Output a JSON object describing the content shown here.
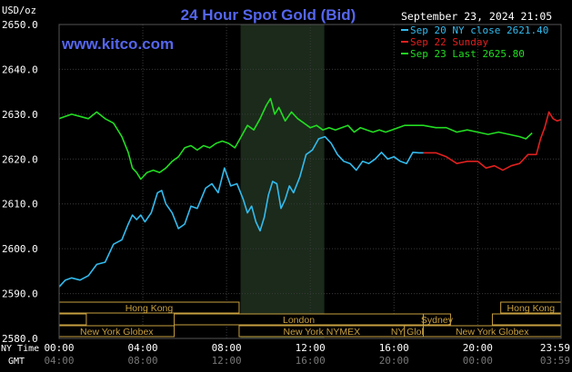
{
  "chart_data": {
    "type": "line",
    "title": "24 Hour Spot Gold (Bid)",
    "ylabel": "USD/oz",
    "watermark": "www.kitco.com",
    "timestamp": "September 23, 2024 21:05",
    "ylim": [
      2580,
      2650
    ],
    "yticks": [
      "2650.0",
      "2640.0",
      "2630.0",
      "2620.0",
      "2610.0",
      "2600.0",
      "2590.0",
      "2580.0"
    ],
    "yvalues": [
      2650,
      2640,
      2630,
      2620,
      2610,
      2600,
      2590,
      2580
    ],
    "x_axis_label_ny": "NY Time",
    "x_axis_label_gmt": "GMT",
    "ny_ticks": [
      "00:00",
      "04:00",
      "08:00",
      "12:00",
      "16:00",
      "20:00",
      "23:59"
    ],
    "gmt_ticks": [
      "04:00",
      "08:00",
      "12:00",
      "16:00",
      "20:00",
      "00:00",
      "03:59"
    ],
    "tick_hours": [
      0,
      4,
      8,
      12,
      16,
      20,
      23.983
    ],
    "highlight_hours": [
      8.67,
      12.67
    ],
    "legend": [
      {
        "label": "Sep 20 NY close 2621.40",
        "color": "#33bbee"
      },
      {
        "label": "Sep 22 Sunday",
        "color": "#e0201f"
      },
      {
        "label": "Sep 23 Last 2625.80",
        "color": "#22dd22"
      }
    ],
    "series": [
      {
        "name": "Sep 20 NY close 2621.40",
        "color": "#33bbee",
        "x": [
          0,
          0.3,
          0.6,
          1.0,
          1.4,
          1.8,
          2.2,
          2.6,
          3.0,
          3.3,
          3.5,
          3.7,
          3.9,
          4.1,
          4.4,
          4.7,
          4.9,
          5.1,
          5.4,
          5.7,
          6.0,
          6.3,
          6.6,
          7.0,
          7.3,
          7.6,
          7.9,
          8.2,
          8.5,
          8.8,
          9.0,
          9.2,
          9.4,
          9.6,
          9.8,
          10.0,
          10.2,
          10.4,
          10.6,
          10.8,
          11.0,
          11.2,
          11.5,
          11.8,
          12.1,
          12.4,
          12.7,
          13.0,
          13.3,
          13.6,
          13.9,
          14.2,
          14.5,
          14.8,
          15.1,
          15.4,
          15.7,
          16.0,
          16.3,
          16.6,
          16.9,
          17.2,
          17.4
        ],
        "values": [
          2591.5,
          2593.0,
          2593.5,
          2593.0,
          2594.0,
          2596.5,
          2597.0,
          2601.0,
          2602.0,
          2605.5,
          2607.5,
          2606.5,
          2607.5,
          2606.0,
          2608.0,
          2612.5,
          2613.0,
          2610.0,
          2608.0,
          2604.5,
          2605.5,
          2609.5,
          2609.0,
          2613.5,
          2614.5,
          2612.5,
          2618.0,
          2614.0,
          2614.5,
          2611.0,
          2608.0,
          2609.5,
          2606.0,
          2604.0,
          2607.0,
          2612.0,
          2615.0,
          2614.5,
          2609.0,
          2611.0,
          2614.0,
          2612.5,
          2616.0,
          2621.0,
          2622.0,
          2624.5,
          2625.0,
          2623.5,
          2621.0,
          2619.5,
          2619.0,
          2617.5,
          2619.5,
          2619.0,
          2620.0,
          2621.5,
          2620.0,
          2620.5,
          2619.5,
          2619.0,
          2621.5,
          2621.4,
          2621.4
        ]
      },
      {
        "name": "Sep 22 Sunday",
        "color": "#e0201f",
        "x": [
          17.4,
          18.0,
          18.5,
          19.0,
          19.5,
          20.0,
          20.4,
          20.8,
          21.2,
          21.6,
          22.0,
          22.4,
          22.8,
          23.0,
          23.2,
          23.4,
          23.6,
          23.8,
          23.983
        ],
        "values": [
          2621.4,
          2621.4,
          2620.5,
          2619.0,
          2619.5,
          2619.5,
          2618.0,
          2618.5,
          2617.5,
          2618.5,
          2619.0,
          2621.0,
          2621.0,
          2624.5,
          2627.0,
          2630.5,
          2629.0,
          2628.5,
          2628.8
        ]
      },
      {
        "name": "Sep 23 Last 2625.80",
        "color": "#22dd22",
        "x": [
          0,
          0.3,
          0.6,
          1.0,
          1.4,
          1.8,
          2.2,
          2.6,
          3.0,
          3.3,
          3.5,
          3.7,
          3.9,
          4.2,
          4.5,
          4.8,
          5.1,
          5.4,
          5.7,
          6.0,
          6.3,
          6.6,
          6.9,
          7.2,
          7.5,
          7.8,
          8.1,
          8.4,
          8.7,
          9.0,
          9.3,
          9.6,
          9.9,
          10.1,
          10.3,
          10.5,
          10.8,
          11.1,
          11.4,
          11.7,
          12.0,
          12.3,
          12.6,
          12.9,
          13.2,
          13.5,
          13.8,
          14.1,
          14.4,
          14.7,
          15.0,
          15.3,
          15.6,
          15.9,
          16.2,
          16.5,
          16.8,
          17.1,
          17.4,
          18.0,
          18.5,
          19.0,
          19.5,
          20.0,
          20.5,
          21.0,
          21.5,
          22.0,
          22.3,
          22.6
        ],
        "values": [
          2629.0,
          2629.5,
          2630.0,
          2629.5,
          2629.0,
          2630.5,
          2629.0,
          2628.0,
          2625.0,
          2621.5,
          2618.0,
          2617.0,
          2615.5,
          2617.0,
          2617.5,
          2617.0,
          2618.0,
          2619.5,
          2620.5,
          2622.5,
          2623.0,
          2622.0,
          2623.0,
          2622.5,
          2623.5,
          2624.0,
          2623.5,
          2622.5,
          2625.0,
          2627.5,
          2626.5,
          2629.0,
          2632.0,
          2633.5,
          2630.0,
          2631.5,
          2628.5,
          2630.5,
          2629.0,
          2628.0,
          2627.0,
          2627.5,
          2626.5,
          2627.0,
          2626.5,
          2627.0,
          2627.5,
          2626.0,
          2627.0,
          2626.5,
          2626.0,
          2626.5,
          2626.0,
          2626.5,
          2627.0,
          2627.5,
          2627.5,
          2627.5,
          2627.5,
          2627.0,
          2627.0,
          2626.0,
          2626.5,
          2626.0,
          2625.5,
          2626.0,
          2625.5,
          2625.0,
          2624.5,
          2625.8
        ]
      }
    ],
    "sessions": [
      {
        "row": 0,
        "label": "Hong Kong",
        "start": 0,
        "end": 8.6
      },
      {
        "row": 0,
        "label": "Hong Kong",
        "start": 21.1,
        "end": 23.983
      },
      {
        "row": 1,
        "label": "",
        "start": 0,
        "end": 1.3
      },
      {
        "row": 1,
        "label": "London",
        "start": 5.5,
        "end": 17.4
      },
      {
        "row": 1,
        "label": "Sydney",
        "start": 17.4,
        "end": 18.7
      },
      {
        "row": 1,
        "label": "",
        "start": 20.7,
        "end": 23.983
      },
      {
        "row": 2,
        "label": "New York Globex",
        "start": 0,
        "end": 5.5
      },
      {
        "row": 2,
        "label": "New York NYMEX",
        "start": 8.6,
        "end": 16.5
      },
      {
        "row": 2,
        "label": "NY Globex",
        "start": 16.5,
        "end": 17.4
      },
      {
        "row": 2,
        "label": "New York Globex",
        "start": 17.4,
        "end": 23.983
      }
    ]
  }
}
